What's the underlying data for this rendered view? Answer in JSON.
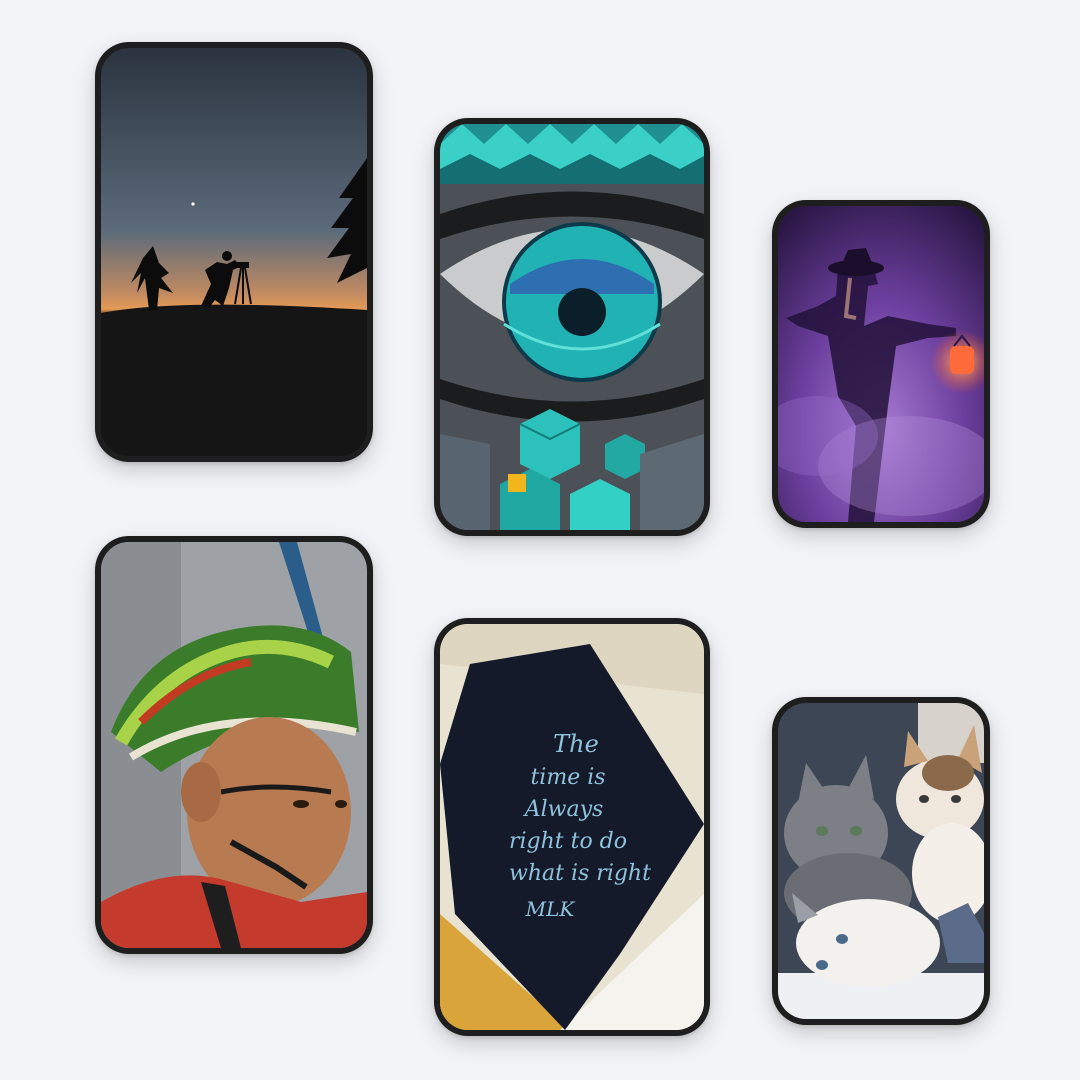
{
  "gallery": {
    "cards": [
      {
        "subject": "silhouette-photographer-at-dusk"
      },
      {
        "subject": "mural-eye-with-teal-cubes"
      },
      {
        "subject": "figure-with-lantern-in-purple-smoke"
      },
      {
        "subject": "child-with-feather-headdress"
      },
      {
        "subject": "calligraphy-quote-on-paper",
        "quote_lines": [
          "The",
          "time is",
          "Always",
          "right to do",
          "what is right",
          "MLK"
        ]
      },
      {
        "subject": "kittens-cuddling"
      }
    ]
  }
}
